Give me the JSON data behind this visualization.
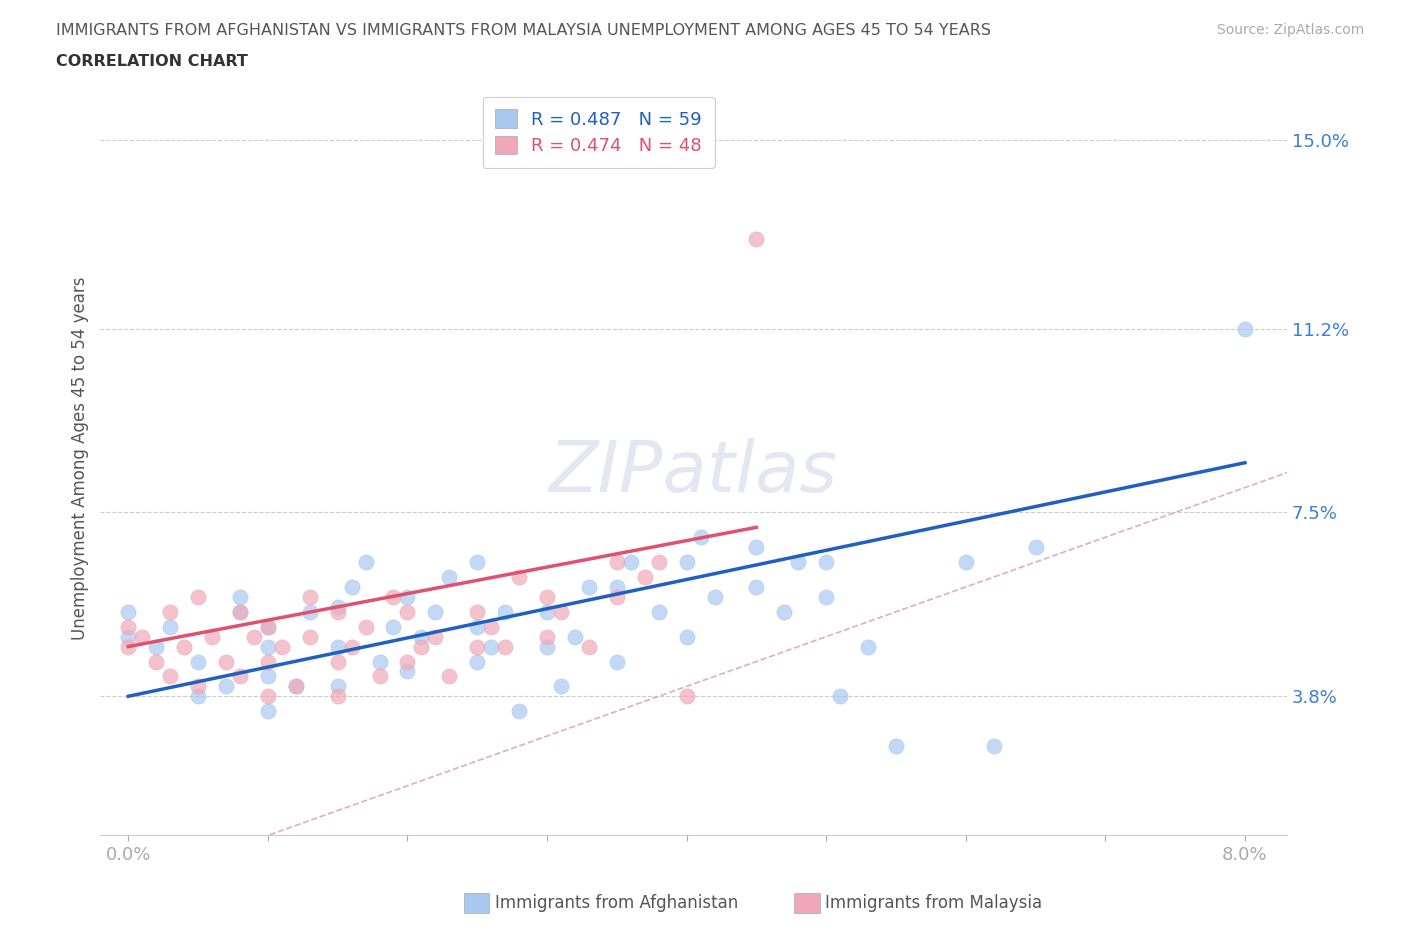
{
  "title_line1": "IMMIGRANTS FROM AFGHANISTAN VS IMMIGRANTS FROM MALAYSIA UNEMPLOYMENT AMONG AGES 45 TO 54 YEARS",
  "title_line2": "CORRELATION CHART",
  "source_text": "Source: ZipAtlas.com",
  "watermark_text": "ZIPatlas",
  "ylabel": "Unemployment Among Ages 45 to 54 years",
  "xlim": [
    -0.002,
    0.083
  ],
  "ylim": [
    0.01,
    0.162
  ],
  "yticks": [
    0.038,
    0.075,
    0.112,
    0.15
  ],
  "ytick_labels": [
    "3.8%",
    "7.5%",
    "11.2%",
    "15.0%"
  ],
  "xticks": [
    0.0,
    0.01,
    0.02,
    0.03,
    0.04,
    0.05,
    0.06,
    0.07,
    0.08
  ],
  "xtick_labels_show": [
    "0.0%",
    "",
    "",
    "",
    "",
    "",
    "",
    "",
    "8.0%"
  ],
  "afghanistan_color": "#a8c8f0",
  "malaysia_color": "#f0a8b8",
  "afghanistan_line_color": "#2060c0",
  "malaysia_line_color": "#e05070",
  "diagonal_color": "#e0b0b0",
  "R_afghanistan": 0.487,
  "N_afghanistan": 59,
  "R_malaysia": 0.474,
  "N_malaysia": 48,
  "afghanistan_x": [
    0.0,
    0.0,
    0.002,
    0.003,
    0.005,
    0.005,
    0.007,
    0.008,
    0.008,
    0.01,
    0.01,
    0.01,
    0.01,
    0.012,
    0.013,
    0.015,
    0.015,
    0.015,
    0.016,
    0.017,
    0.018,
    0.019,
    0.02,
    0.02,
    0.021,
    0.022,
    0.023,
    0.025,
    0.025,
    0.025,
    0.026,
    0.027,
    0.028,
    0.03,
    0.03,
    0.031,
    0.032,
    0.033,
    0.035,
    0.035,
    0.036,
    0.038,
    0.04,
    0.04,
    0.041,
    0.042,
    0.045,
    0.045,
    0.047,
    0.048,
    0.05,
    0.05,
    0.051,
    0.053,
    0.055,
    0.06,
    0.062,
    0.065,
    0.08
  ],
  "afghanistan_y": [
    0.05,
    0.055,
    0.048,
    0.052,
    0.038,
    0.045,
    0.04,
    0.055,
    0.058,
    0.035,
    0.042,
    0.048,
    0.052,
    0.04,
    0.055,
    0.04,
    0.048,
    0.056,
    0.06,
    0.065,
    0.045,
    0.052,
    0.043,
    0.058,
    0.05,
    0.055,
    0.062,
    0.045,
    0.052,
    0.065,
    0.048,
    0.055,
    0.035,
    0.048,
    0.055,
    0.04,
    0.05,
    0.06,
    0.045,
    0.06,
    0.065,
    0.055,
    0.05,
    0.065,
    0.07,
    0.058,
    0.06,
    0.068,
    0.055,
    0.065,
    0.058,
    0.065,
    0.038,
    0.048,
    0.028,
    0.065,
    0.028,
    0.068,
    0.112
  ],
  "malaysia_x": [
    0.0,
    0.0,
    0.001,
    0.002,
    0.003,
    0.003,
    0.004,
    0.005,
    0.005,
    0.006,
    0.007,
    0.008,
    0.008,
    0.009,
    0.01,
    0.01,
    0.01,
    0.011,
    0.012,
    0.013,
    0.013,
    0.015,
    0.015,
    0.015,
    0.016,
    0.017,
    0.018,
    0.019,
    0.02,
    0.02,
    0.021,
    0.022,
    0.023,
    0.025,
    0.025,
    0.026,
    0.027,
    0.028,
    0.03,
    0.03,
    0.031,
    0.033,
    0.035,
    0.035,
    0.037,
    0.038,
    0.04,
    0.045
  ],
  "malaysia_y": [
    0.048,
    0.052,
    0.05,
    0.045,
    0.042,
    0.055,
    0.048,
    0.04,
    0.058,
    0.05,
    0.045,
    0.042,
    0.055,
    0.05,
    0.038,
    0.045,
    0.052,
    0.048,
    0.04,
    0.05,
    0.058,
    0.038,
    0.045,
    0.055,
    0.048,
    0.052,
    0.042,
    0.058,
    0.045,
    0.055,
    0.048,
    0.05,
    0.042,
    0.048,
    0.055,
    0.052,
    0.048,
    0.062,
    0.05,
    0.058,
    0.055,
    0.048,
    0.065,
    0.058,
    0.062,
    0.065,
    0.038,
    0.13
  ],
  "afg_trend_x0": 0.0,
  "afg_trend_y0": 0.038,
  "afg_trend_x1": 0.08,
  "afg_trend_y1": 0.085,
  "mal_trend_x0": 0.0,
  "mal_trend_y0": 0.048,
  "mal_trend_x1": 0.045,
  "mal_trend_y1": 0.072
}
